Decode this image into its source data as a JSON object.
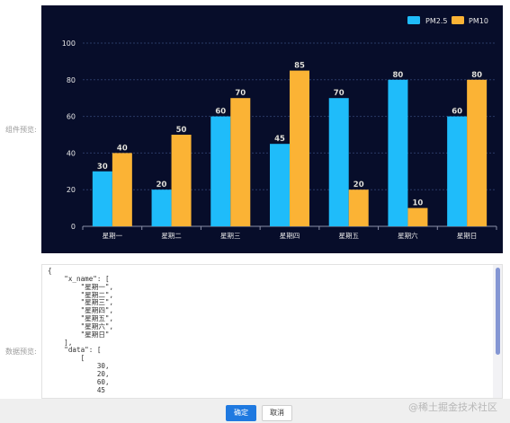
{
  "labels": {
    "preview": "组件预览:",
    "data_preview": "数据预览:"
  },
  "chart_data": {
    "type": "bar",
    "categories": [
      "星期一",
      "星期二",
      "星期三",
      "星期四",
      "星期五",
      "星期六",
      "星期日"
    ],
    "series": [
      {
        "name": "PM2.5",
        "color": "#1fbcfa",
        "values": [
          30,
          20,
          60,
          45,
          70,
          80,
          60
        ]
      },
      {
        "name": "PM10",
        "color": "#fbb335",
        "values": [
          40,
          50,
          70,
          85,
          20,
          10,
          80
        ]
      }
    ],
    "ylim": [
      0,
      100
    ],
    "yticks": [
      0,
      20,
      40,
      60,
      80,
      100
    ],
    "legend": "top-right",
    "grid": true,
    "background": "#070d2a"
  },
  "code_preview": "{\n    \"x_name\": [\n        \"星期一\",\n        \"星期二\",\n        \"星期三\",\n        \"星期四\",\n        \"星期五\",\n        \"星期六\",\n        \"星期日\"\n    ],\n    \"data\": [\n        [\n            30,\n            20,\n            60,\n            45",
  "buttons": {
    "ok": "确定",
    "cancel": "取消"
  },
  "watermark": "@稀土掘金技术社区"
}
